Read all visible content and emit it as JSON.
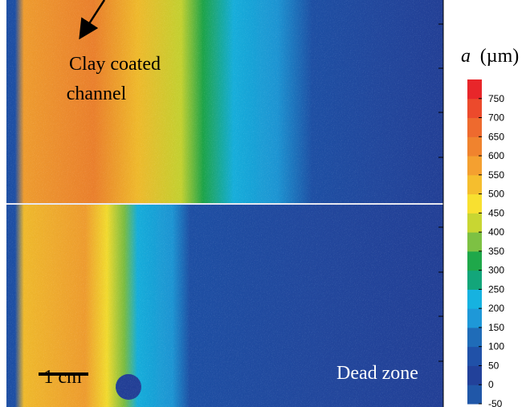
{
  "annotations": {
    "channel_line1": "Clay coated",
    "channel_line2": "channel",
    "dead_zone": "Dead zone",
    "scale_bar": "1 cm"
  },
  "colorbar": {
    "variable": "a",
    "unit": "(µm)",
    "lim": [
      -50,
      800
    ],
    "ticks": [
      -50,
      0,
      50,
      100,
      150,
      200,
      250,
      300,
      350,
      400,
      450,
      500,
      550,
      600,
      650,
      700,
      750
    ],
    "colors": [
      "#2057a8",
      "#22419a",
      "#2051a8",
      "#1f6cb8",
      "#1e98d8",
      "#16b2e0",
      "#13a67a",
      "#1fa84a",
      "#7dc143",
      "#c8d632",
      "#f8e030",
      "#f5be2e",
      "#f4a030",
      "#f0832e",
      "#ee6a2e",
      "#ec4a2c",
      "#e8262a"
    ]
  }
}
